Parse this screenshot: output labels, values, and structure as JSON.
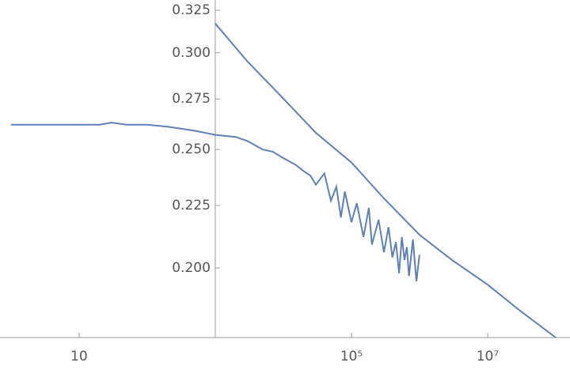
{
  "chart_data": {
    "type": "line",
    "xscale": "log",
    "yscale": "log",
    "xlim": [
      0.69,
      162000000.0
    ],
    "ylim": [
      0.1754,
      0.3314
    ],
    "axes_origin": [
      1000,
      0.1754
    ],
    "xticks": [
      {
        "value": 10,
        "label": "10"
      },
      {
        "value": 100000,
        "label": "10⁵"
      },
      {
        "value": 10000000,
        "label": "10⁷"
      }
    ],
    "yticks": [
      {
        "value": 0.2,
        "label": "0.200"
      },
      {
        "value": 0.225,
        "label": "0.225"
      },
      {
        "value": 0.25,
        "label": "0.250"
      },
      {
        "value": 0.275,
        "label": "0.275"
      },
      {
        "value": 0.3,
        "label": "0.300"
      },
      {
        "value": 0.325,
        "label": "0.325"
      }
    ],
    "series": [
      {
        "color": "#5e81b5",
        "x": [
          1,
          2,
          3,
          4,
          5,
          6,
          7,
          8,
          9,
          10,
          15,
          20,
          30,
          50,
          100,
          200,
          500,
          1000,
          2000,
          3000,
          5000,
          7000,
          10000,
          15000,
          20000,
          25000,
          30000,
          40000,
          50000,
          60000,
          70000,
          80000,
          100000,
          120000,
          150000,
          180000,
          200000,
          250000,
          300000,
          350000,
          400000,
          450000,
          500000,
          550000,
          600000,
          650000,
          700000,
          800000,
          900000,
          1000000
        ],
        "values": [
          0.262,
          0.262,
          0.262,
          0.262,
          0.262,
          0.262,
          0.262,
          0.262,
          0.262,
          0.262,
          0.262,
          0.262,
          0.263,
          0.262,
          0.262,
          0.261,
          0.259,
          0.257,
          0.256,
          0.254,
          0.25,
          0.249,
          0.246,
          0.243,
          0.24,
          0.238,
          0.234,
          0.239,
          0.227,
          0.233,
          0.22,
          0.231,
          0.218,
          0.226,
          0.212,
          0.224,
          0.209,
          0.219,
          0.206,
          0.216,
          0.204,
          0.21,
          0.198,
          0.212,
          0.203,
          0.208,
          0.197,
          0.211,
          0.195,
          0.205
        ]
      },
      {
        "color": "#5e81b5",
        "x": [
          1000,
          3000,
          10000,
          30000,
          100000,
          300000,
          1000000,
          3000000,
          10000000,
          30000000,
          100000000
        ],
        "values": [
          0.317,
          0.295,
          0.2752,
          0.258,
          0.244,
          0.228,
          0.2129,
          0.203,
          0.1938,
          0.1845,
          0.1754
        ]
      }
    ]
  }
}
